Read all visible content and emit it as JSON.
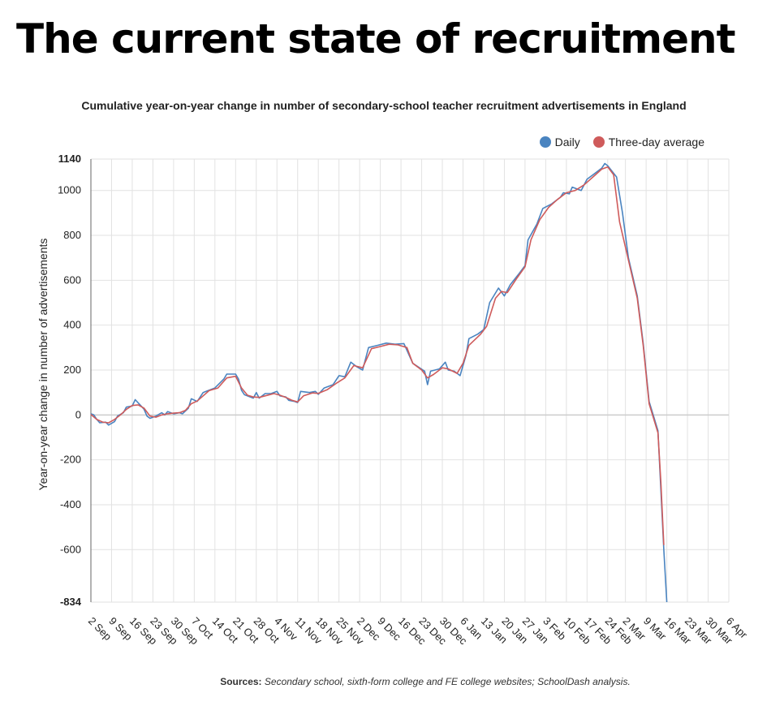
{
  "headline": "The current state of recruitment",
  "sources": {
    "label": "Sources:",
    "text": "Secondary school, sixth-form college and FE college websites; SchoolDash analysis."
  },
  "colors": {
    "daily": "#4a84c0",
    "average": "#cf5b5b",
    "grid": "#e2e2e2",
    "zero_line": "#cccccc"
  },
  "chart_data": {
    "type": "line",
    "title": "Cumulative year-on-year change in number of secondary-school teacher recruitment advertisements in England",
    "xlabel": "",
    "ylabel": "Year-on-year change in number of advertisements",
    "ylim": [
      -834,
      1140
    ],
    "y_ticks": [
      -834,
      -600,
      -400,
      -200,
      0,
      200,
      400,
      600,
      800,
      1000,
      1140
    ],
    "y_tick_labels": [
      "-834",
      "-600",
      "-400",
      "-200",
      "0",
      "200",
      "400",
      "600",
      "800",
      "1000",
      "1140"
    ],
    "x_ticks": [
      "2 Sep",
      "9 Sep",
      "16 Sep",
      "23 Sep",
      "30 Sep",
      "7 Oct",
      "14 Oct",
      "21 Oct",
      "28 Oct",
      "4 Nov",
      "11 Nov",
      "18 Nov",
      "25 Nov",
      "2 Dec",
      "9 Dec",
      "16 Dec",
      "23 Dec",
      "30 Dec",
      "6 Jan",
      "13 Jan",
      "20 Jan",
      "27 Jan",
      "3 Feb",
      "10 Feb",
      "17 Feb",
      "24 Feb",
      "2 Mar",
      "9 Mar",
      "16 Mar",
      "23 Mar",
      "30 Mar",
      "6 Apr"
    ],
    "grid": true,
    "legend_position": "top-right",
    "x_start_date": "2 Sep",
    "series": [
      {
        "name": "Daily",
        "points": [
          [
            "2 Sep",
            5
          ],
          [
            "3 Sep",
            0
          ],
          [
            "4 Sep",
            -20
          ],
          [
            "5 Sep",
            -35
          ],
          [
            "7 Sep",
            -32
          ],
          [
            "8 Sep",
            -45
          ],
          [
            "10 Sep",
            -30
          ],
          [
            "11 Sep",
            -5
          ],
          [
            "13 Sep",
            10
          ],
          [
            "14 Sep",
            35
          ],
          [
            "16 Sep",
            40
          ],
          [
            "17 Sep",
            68
          ],
          [
            "19 Sep",
            40
          ],
          [
            "20 Sep",
            25
          ],
          [
            "21 Sep",
            -5
          ],
          [
            "22 Sep",
            -15
          ],
          [
            "24 Sep",
            -5
          ],
          [
            "26 Sep",
            10
          ],
          [
            "27 Sep",
            0
          ],
          [
            "28 Sep",
            15
          ],
          [
            "30 Sep",
            5
          ],
          [
            "2 Oct",
            10
          ],
          [
            "3 Oct",
            5
          ],
          [
            "5 Oct",
            30
          ],
          [
            "6 Oct",
            72
          ],
          [
            "8 Oct",
            60
          ],
          [
            "10 Oct",
            100
          ],
          [
            "11 Oct",
            105
          ],
          [
            "14 Oct",
            120
          ],
          [
            "17 Oct",
            160
          ],
          [
            "18 Oct",
            182
          ],
          [
            "21 Oct",
            182
          ],
          [
            "22 Oct",
            160
          ],
          [
            "23 Oct",
            110
          ],
          [
            "24 Oct",
            90
          ],
          [
            "26 Oct",
            80
          ],
          [
            "27 Oct",
            75
          ],
          [
            "28 Oct",
            100
          ],
          [
            "29 Oct",
            75
          ],
          [
            "31 Oct",
            95
          ],
          [
            "2 Nov",
            95
          ],
          [
            "4 Nov",
            105
          ],
          [
            "5 Nov",
            85
          ],
          [
            "7 Nov",
            80
          ],
          [
            "8 Nov",
            65
          ],
          [
            "10 Nov",
            60
          ],
          [
            "11 Nov",
            55
          ],
          [
            "12 Nov",
            105
          ],
          [
            "15 Nov",
            100
          ],
          [
            "17 Nov",
            105
          ],
          [
            "18 Nov",
            92
          ],
          [
            "20 Nov",
            120
          ],
          [
            "23 Nov",
            135
          ],
          [
            "25 Nov",
            175
          ],
          [
            "27 Nov",
            170
          ],
          [
            "29 Nov",
            235
          ],
          [
            "1 Dec",
            215
          ],
          [
            "3 Dec",
            200
          ],
          [
            "5 Dec",
            300
          ],
          [
            "8 Dec",
            310
          ],
          [
            "11 Dec",
            320
          ],
          [
            "14 Dec",
            315
          ],
          [
            "17 Dec",
            318
          ],
          [
            "20 Dec",
            230
          ],
          [
            "24 Dec",
            195
          ],
          [
            "25 Dec",
            135
          ],
          [
            "26 Dec",
            195
          ],
          [
            "29 Dec",
            205
          ],
          [
            "31 Dec",
            235
          ],
          [
            "1 Jan",
            200
          ],
          [
            "3 Jan",
            195
          ],
          [
            "5 Jan",
            175
          ],
          [
            "7 Jan",
            265
          ],
          [
            "8 Jan",
            340
          ],
          [
            "11 Jan",
            360
          ],
          [
            "13 Jan",
            380
          ],
          [
            "15 Jan",
            500
          ],
          [
            "18 Jan",
            565
          ],
          [
            "20 Jan",
            530
          ],
          [
            "22 Jan",
            580
          ],
          [
            "25 Jan",
            630
          ],
          [
            "27 Jan",
            665
          ],
          [
            "28 Jan",
            780
          ],
          [
            "31 Jan",
            850
          ],
          [
            "2 Feb",
            920
          ],
          [
            "5 Feb",
            940
          ],
          [
            "8 Feb",
            970
          ],
          [
            "9 Feb",
            990
          ],
          [
            "11 Feb",
            985
          ],
          [
            "12 Feb",
            1015
          ],
          [
            "15 Feb",
            1000
          ],
          [
            "17 Feb",
            1050
          ],
          [
            "20 Feb",
            1080
          ],
          [
            "22 Feb",
            1100
          ],
          [
            "23 Feb",
            1120
          ],
          [
            "24 Feb",
            1110
          ],
          [
            "27 Feb",
            1060
          ],
          [
            "1 Mar",
            900
          ],
          [
            "3 Mar",
            700
          ],
          [
            "6 Mar",
            530
          ],
          [
            "8 Mar",
            320
          ],
          [
            "10 Mar",
            60
          ],
          [
            "13 Mar",
            -70
          ],
          [
            "15 Mar",
            -600
          ],
          [
            "16 Mar",
            -834
          ]
        ]
      },
      {
        "name": "Three-day average",
        "points": [
          [
            "2 Sep",
            2
          ],
          [
            "4 Sep",
            -20
          ],
          [
            "6 Sep",
            -32
          ],
          [
            "8 Sep",
            -35
          ],
          [
            "10 Sep",
            -20
          ],
          [
            "12 Sep",
            0
          ],
          [
            "14 Sep",
            25
          ],
          [
            "16 Sep",
            42
          ],
          [
            "18 Sep",
            45
          ],
          [
            "20 Sep",
            30
          ],
          [
            "22 Sep",
            -5
          ],
          [
            "24 Sep",
            -10
          ],
          [
            "26 Sep",
            0
          ],
          [
            "28 Sep",
            5
          ],
          [
            "30 Sep",
            8
          ],
          [
            "2 Oct",
            10
          ],
          [
            "4 Oct",
            20
          ],
          [
            "6 Oct",
            50
          ],
          [
            "8 Oct",
            62
          ],
          [
            "10 Oct",
            85
          ],
          [
            "12 Oct",
            108
          ],
          [
            "15 Oct",
            120
          ],
          [
            "18 Oct",
            165
          ],
          [
            "21 Oct",
            172
          ],
          [
            "23 Oct",
            120
          ],
          [
            "25 Oct",
            88
          ],
          [
            "27 Oct",
            80
          ],
          [
            "29 Oct",
            78
          ],
          [
            "31 Oct",
            85
          ],
          [
            "3 Nov",
            95
          ],
          [
            "5 Nov",
            88
          ],
          [
            "7 Nov",
            78
          ],
          [
            "9 Nov",
            66
          ],
          [
            "11 Nov",
            58
          ],
          [
            "13 Nov",
            85
          ],
          [
            "16 Nov",
            98
          ],
          [
            "18 Nov",
            96
          ],
          [
            "21 Nov",
            112
          ],
          [
            "24 Nov",
            140
          ],
          [
            "27 Nov",
            165
          ],
          [
            "30 Nov",
            220
          ],
          [
            "3 Dec",
            210
          ],
          [
            "6 Dec",
            295
          ],
          [
            "9 Dec",
            305
          ],
          [
            "12 Dec",
            315
          ],
          [
            "15 Dec",
            312
          ],
          [
            "18 Dec",
            300
          ],
          [
            "20 Dec",
            230
          ],
          [
            "23 Dec",
            200
          ],
          [
            "25 Dec",
            165
          ],
          [
            "27 Dec",
            180
          ],
          [
            "30 Dec",
            210
          ],
          [
            "1 Jan",
            205
          ],
          [
            "4 Jan",
            185
          ],
          [
            "6 Jan",
            230
          ],
          [
            "8 Jan",
            310
          ],
          [
            "12 Jan",
            360
          ],
          [
            "14 Jan",
            395
          ],
          [
            "17 Jan",
            520
          ],
          [
            "19 Jan",
            550
          ],
          [
            "21 Jan",
            545
          ],
          [
            "24 Jan",
            605
          ],
          [
            "27 Jan",
            660
          ],
          [
            "29 Jan",
            780
          ],
          [
            "1 Feb",
            870
          ],
          [
            "4 Feb",
            925
          ],
          [
            "7 Feb",
            960
          ],
          [
            "10 Feb",
            990
          ],
          [
            "13 Feb",
            1000
          ],
          [
            "16 Feb",
            1025
          ],
          [
            "19 Feb",
            1060
          ],
          [
            "22 Feb",
            1095
          ],
          [
            "24 Feb",
            1105
          ],
          [
            "26 Feb",
            1070
          ],
          [
            "28 Feb",
            860
          ],
          [
            "3 Mar",
            690
          ],
          [
            "6 Mar",
            520
          ],
          [
            "8 Mar",
            310
          ],
          [
            "10 Mar",
            50
          ],
          [
            "13 Mar",
            -80
          ],
          [
            "14 Mar",
            -300
          ],
          [
            "15 Mar",
            -580
          ]
        ]
      }
    ]
  }
}
